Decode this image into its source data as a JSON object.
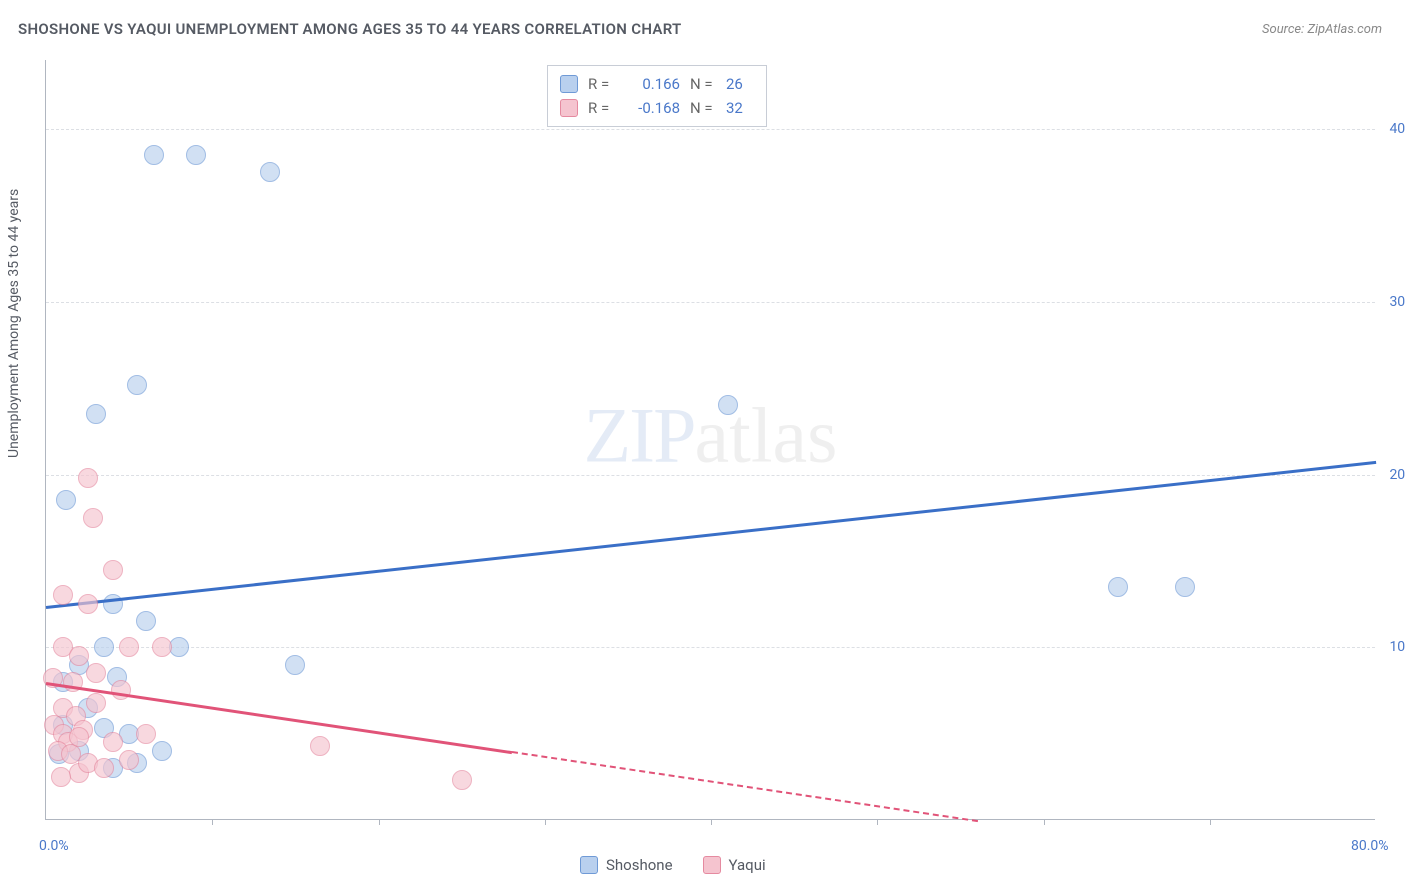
{
  "title": "SHOSHONE VS YAQUI UNEMPLOYMENT AMONG AGES 35 TO 44 YEARS CORRELATION CHART",
  "source_prefix": "Source: ",
  "source": "ZipAtlas.com",
  "ylabel": "Unemployment Among Ages 35 to 44 years",
  "watermark_a": "ZIP",
  "watermark_b": "atlas",
  "chart": {
    "type": "scatter",
    "background_color": "#ffffff",
    "grid_color": "#dcdfe4",
    "axis_color": "#b0b6c0",
    "xlim": [
      0,
      80
    ],
    "ylim": [
      0,
      44
    ],
    "yticks": [
      10,
      20,
      30,
      40
    ],
    "ytick_labels": [
      "10.0%",
      "20.0%",
      "30.0%",
      "40.0%"
    ],
    "xticks_minor": [
      10,
      20,
      30,
      40,
      50,
      60,
      70
    ],
    "xtick_min_label": "0.0%",
    "xtick_max_label": "80.0%",
    "tick_label_color": "#4a78c9",
    "tick_fontsize": 14,
    "axis_label_fontsize": 14,
    "marker_radius": 10,
    "marker_opacity": 0.65,
    "series": [
      {
        "name": "Shoshone",
        "fill": "#b9d0ee",
        "stroke": "#6f9ad6",
        "trend_color": "#3a6fc7",
        "r_label": "R =",
        "r_value": "0.166",
        "n_label": "N =",
        "n_value": "26",
        "trend": {
          "x1": 0,
          "y1": 12.4,
          "x2": 80,
          "y2": 20.8,
          "dash": false
        },
        "points": [
          {
            "x": 6.5,
            "y": 38.5
          },
          {
            "x": 9.0,
            "y": 38.5
          },
          {
            "x": 13.5,
            "y": 37.5
          },
          {
            "x": 1.2,
            "y": 18.5
          },
          {
            "x": 3.0,
            "y": 23.5
          },
          {
            "x": 5.5,
            "y": 25.2
          },
          {
            "x": 41.0,
            "y": 24.0
          },
          {
            "x": 64.5,
            "y": 13.5
          },
          {
            "x": 68.5,
            "y": 13.5
          },
          {
            "x": 4.0,
            "y": 12.5
          },
          {
            "x": 6.0,
            "y": 11.5
          },
          {
            "x": 3.5,
            "y": 10.0
          },
          {
            "x": 8.0,
            "y": 10.0
          },
          {
            "x": 15.0,
            "y": 9.0
          },
          {
            "x": 2.0,
            "y": 9.0
          },
          {
            "x": 1.0,
            "y": 5.5
          },
          {
            "x": 2.0,
            "y": 4.0
          },
          {
            "x": 3.5,
            "y": 5.3
          },
          {
            "x": 5.0,
            "y": 5.0
          },
          {
            "x": 4.0,
            "y": 3.0
          },
          {
            "x": 5.5,
            "y": 3.3
          },
          {
            "x": 7.0,
            "y": 4.0
          },
          {
            "x": 2.5,
            "y": 6.5
          },
          {
            "x": 1.0,
            "y": 8.0
          },
          {
            "x": 4.3,
            "y": 8.3
          },
          {
            "x": 0.8,
            "y": 3.8
          }
        ]
      },
      {
        "name": "Yaqui",
        "fill": "#f5c4cf",
        "stroke": "#e58aa0",
        "trend_color": "#e15378",
        "r_label": "R =",
        "r_value": "-0.168",
        "n_label": "N =",
        "n_value": "32",
        "trend": {
          "x1": 0,
          "y1": 8.0,
          "x2": 28,
          "y2": 4.0,
          "dash": false
        },
        "trend_ext": {
          "x1": 28,
          "y1": 4.0,
          "x2": 56,
          "y2": 0.0,
          "dash": true
        },
        "points": [
          {
            "x": 2.5,
            "y": 19.8
          },
          {
            "x": 2.8,
            "y": 17.5
          },
          {
            "x": 4.0,
            "y": 14.5
          },
          {
            "x": 1.0,
            "y": 13.0
          },
          {
            "x": 2.5,
            "y": 12.5
          },
          {
            "x": 1.0,
            "y": 10.0
          },
          {
            "x": 2.0,
            "y": 9.5
          },
          {
            "x": 5.0,
            "y": 10.0
          },
          {
            "x": 7.0,
            "y": 10.0
          },
          {
            "x": 3.0,
            "y": 8.5
          },
          {
            "x": 1.0,
            "y": 6.5
          },
          {
            "x": 0.5,
            "y": 5.5
          },
          {
            "x": 1.0,
            "y": 5.0
          },
          {
            "x": 1.3,
            "y": 4.5
          },
          {
            "x": 0.7,
            "y": 4.0
          },
          {
            "x": 1.5,
            "y": 3.8
          },
          {
            "x": 2.0,
            "y": 2.7
          },
          {
            "x": 2.5,
            "y": 3.3
          },
          {
            "x": 3.5,
            "y": 3.0
          },
          {
            "x": 4.0,
            "y": 4.5
          },
          {
            "x": 5.0,
            "y": 3.5
          },
          {
            "x": 6.0,
            "y": 5.0
          },
          {
            "x": 3.0,
            "y": 6.8
          },
          {
            "x": 1.8,
            "y": 6.0
          },
          {
            "x": 4.5,
            "y": 7.5
          },
          {
            "x": 0.4,
            "y": 8.2
          },
          {
            "x": 2.2,
            "y": 5.2
          },
          {
            "x": 16.5,
            "y": 4.3
          },
          {
            "x": 25.0,
            "y": 2.3
          },
          {
            "x": 2.0,
            "y": 4.8
          },
          {
            "x": 1.6,
            "y": 8.0
          },
          {
            "x": 0.9,
            "y": 2.5
          }
        ]
      }
    ]
  },
  "legend": {
    "swatch_border_radius": 3,
    "items": [
      {
        "name": "Shoshone",
        "fill": "#b9d0ee",
        "stroke": "#6f9ad6"
      },
      {
        "name": "Yaqui",
        "fill": "#f5c4cf",
        "stroke": "#e58aa0"
      }
    ]
  }
}
